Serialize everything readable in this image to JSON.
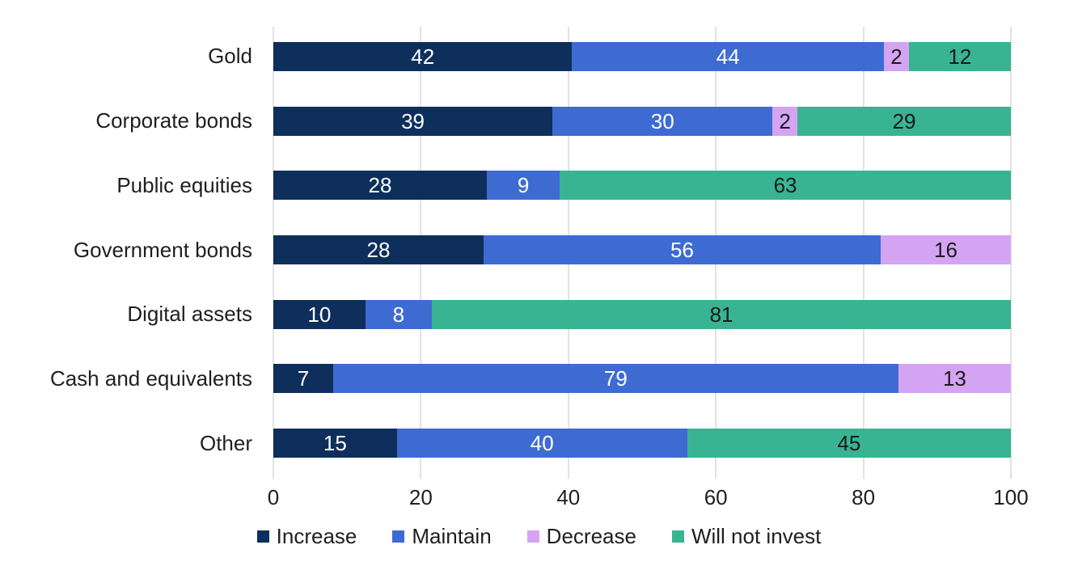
{
  "chart_data": {
    "type": "bar",
    "orientation": "horizontal",
    "stacked": true,
    "title": "",
    "xlabel": "",
    "ylabel": "",
    "xlim": [
      0,
      100
    ],
    "x_ticks": [
      "0",
      "20",
      "40",
      "60",
      "80",
      "100"
    ],
    "grid": "vertical",
    "legend_position": "bottom",
    "categories": [
      "Gold",
      "Corporate bonds",
      "Public equities",
      "Government bonds",
      "Digital assets",
      "Cash and equivalents",
      "Other"
    ],
    "series": [
      {
        "name": "Increase",
        "color": "#0e2f5c",
        "label_color": "#ffffff",
        "values": [
          42,
          39,
          28,
          28,
          10,
          7,
          15
        ]
      },
      {
        "name": "Maintain",
        "color": "#3e6bd2",
        "label_color": "#ffffff",
        "values": [
          44,
          30,
          9,
          56,
          8,
          79,
          40
        ]
      },
      {
        "name": "Decrease",
        "color": "#d4a4f3",
        "label_color": "#1a1a1a",
        "values": [
          2,
          2,
          0,
          16,
          0,
          13,
          0
        ]
      },
      {
        "name": "Will not invest",
        "color": "#38b492",
        "label_color": "#1a1a1a",
        "values": [
          12,
          29,
          63,
          0,
          81,
          0,
          45
        ]
      }
    ],
    "colors": {
      "gridline": "#e2e2e2",
      "axis_text": "#1f1f1f",
      "category_text": "#1f1f1f"
    }
  }
}
